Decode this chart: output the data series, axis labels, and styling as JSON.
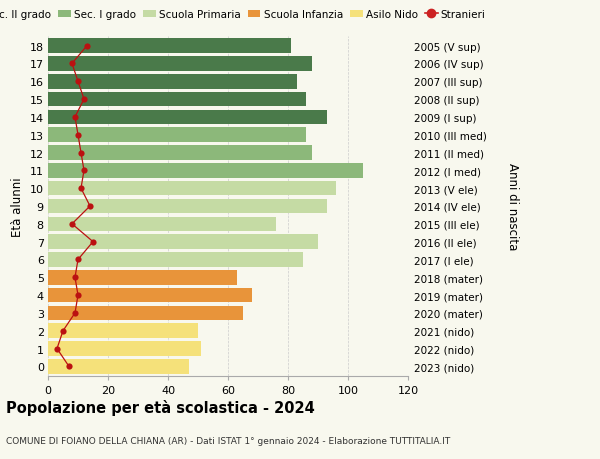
{
  "ages": [
    0,
    1,
    2,
    3,
    4,
    5,
    6,
    7,
    8,
    9,
    10,
    11,
    12,
    13,
    14,
    15,
    16,
    17,
    18
  ],
  "years": [
    "2023 (nido)",
    "2022 (nido)",
    "2021 (nido)",
    "2020 (mater)",
    "2019 (mater)",
    "2018 (mater)",
    "2017 (I ele)",
    "2016 (II ele)",
    "2015 (III ele)",
    "2014 (IV ele)",
    "2013 (V ele)",
    "2012 (I med)",
    "2011 (II med)",
    "2010 (III med)",
    "2009 (I sup)",
    "2008 (II sup)",
    "2007 (III sup)",
    "2006 (IV sup)",
    "2005 (V sup)"
  ],
  "bar_values": [
    47,
    51,
    50,
    65,
    68,
    63,
    85,
    90,
    76,
    93,
    96,
    105,
    88,
    86,
    93,
    86,
    83,
    88,
    81
  ],
  "stranieri": [
    7,
    3,
    5,
    9,
    10,
    9,
    10,
    15,
    8,
    14,
    11,
    12,
    11,
    10,
    9,
    12,
    10,
    8,
    13
  ],
  "bar_colors": [
    "#f5e17a",
    "#f5e17a",
    "#f5e17a",
    "#e8943a",
    "#e8943a",
    "#e8943a",
    "#c5dba4",
    "#c5dba4",
    "#c5dba4",
    "#c5dba4",
    "#c5dba4",
    "#8cb87a",
    "#8cb87a",
    "#8cb87a",
    "#4a7a4a",
    "#4a7a4a",
    "#4a7a4a",
    "#4a7a4a",
    "#4a7a4a"
  ],
  "legend_labels": [
    "Sec. II grado",
    "Sec. I grado",
    "Scuola Primaria",
    "Scuola Infanzia",
    "Asilo Nido",
    "Stranieri"
  ],
  "legend_colors": [
    "#4a7a4a",
    "#8cb87a",
    "#c5dba4",
    "#e8943a",
    "#f5e17a",
    "#cc2222"
  ],
  "title": "Popolazione per età scolastica - 2024",
  "subtitle": "COMUNE DI FOIANO DELLA CHIANA (AR) - Dati ISTAT 1° gennaio 2024 - Elaborazione TUTTITALIA.IT",
  "ylabel_left": "Età alunni",
  "ylabel_right": "Anni di nascita",
  "xlim": [
    0,
    120
  ],
  "xticks": [
    0,
    20,
    40,
    60,
    80,
    100,
    120
  ],
  "background_color": "#f8f8ee",
  "bar_height": 0.82,
  "stranieri_color": "#bb1111",
  "stranieri_line_color": "#bb1111"
}
